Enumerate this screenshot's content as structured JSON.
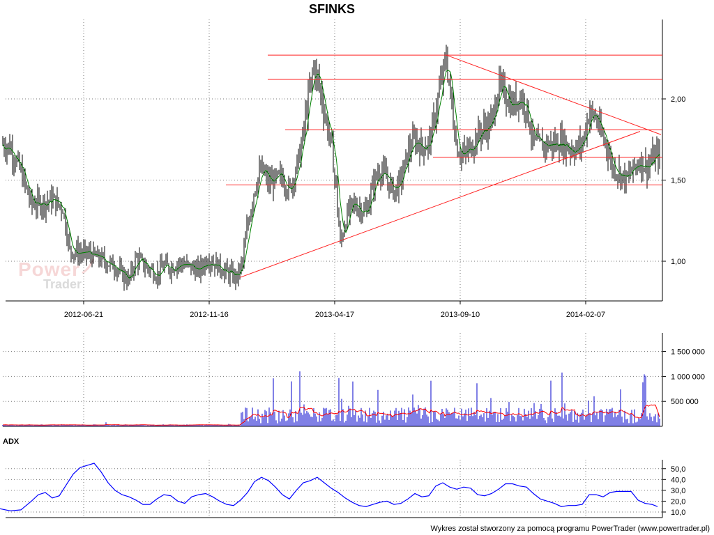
{
  "chart_data": [
    {
      "type": "candlestick",
      "title": "SFINKS",
      "x_tick_labels": [
        "2012-06-21",
        "2012-11-16",
        "2013-04-17",
        "2013-09-10",
        "2014-02-07"
      ],
      "y_tick_labels": [
        "1,00",
        "1,50",
        "2,00"
      ],
      "ylim": [
        0.8,
        2.4
      ],
      "grid": true,
      "price_path": [
        [
          0,
          1.73
        ],
        [
          15,
          1.7
        ],
        [
          30,
          1.55
        ],
        [
          45,
          1.35
        ],
        [
          60,
          1.36
        ],
        [
          75,
          1.38
        ],
        [
          90,
          1.33
        ],
        [
          100,
          1.07
        ],
        [
          115,
          1.05
        ],
        [
          130,
          1.04
        ],
        [
          150,
          1.0
        ],
        [
          165,
          0.97
        ],
        [
          175,
          0.92
        ],
        [
          185,
          0.88
        ],
        [
          195,
          1.02
        ],
        [
          205,
          0.98
        ],
        [
          215,
          0.95
        ],
        [
          225,
          0.92
        ],
        [
          235,
          0.97
        ],
        [
          245,
          0.96
        ],
        [
          255,
          0.99
        ],
        [
          270,
          0.97
        ],
        [
          285,
          0.94
        ],
        [
          298,
          1.02
        ],
        [
          310,
          0.98
        ],
        [
          325,
          0.93
        ],
        [
          340,
          0.9
        ],
        [
          348,
          1.0
        ],
        [
          355,
          1.22
        ],
        [
          365,
          1.45
        ],
        [
          375,
          1.57
        ],
        [
          385,
          1.48
        ],
        [
          395,
          1.5
        ],
        [
          405,
          1.52
        ],
        [
          415,
          1.43
        ],
        [
          425,
          1.58
        ],
        [
          432,
          1.7
        ],
        [
          440,
          1.95
        ],
        [
          450,
          2.2
        ],
        [
          458,
          2.08
        ],
        [
          465,
          1.92
        ],
        [
          475,
          1.72
        ],
        [
          482,
          1.45
        ],
        [
          488,
          1.1
        ],
        [
          495,
          1.25
        ],
        [
          505,
          1.35
        ],
        [
          515,
          1.33
        ],
        [
          525,
          1.3
        ],
        [
          535,
          1.47
        ],
        [
          545,
          1.57
        ],
        [
          555,
          1.5
        ],
        [
          565,
          1.43
        ],
        [
          575,
          1.5
        ],
        [
          585,
          1.67
        ],
        [
          595,
          1.75
        ],
        [
          605,
          1.7
        ],
        [
          615,
          1.73
        ],
        [
          622,
          1.85
        ],
        [
          630,
          2.05
        ],
        [
          640,
          2.25
        ],
        [
          648,
          1.95
        ],
        [
          655,
          1.7
        ],
        [
          665,
          1.65
        ],
        [
          675,
          1.7
        ],
        [
          685,
          1.78
        ],
        [
          695,
          1.82
        ],
        [
          705,
          1.85
        ],
        [
          715,
          2.08
        ],
        [
          725,
          2.03
        ],
        [
          735,
          1.95
        ],
        [
          745,
          2.02
        ],
        [
          755,
          1.95
        ],
        [
          765,
          1.73
        ],
        [
          775,
          1.71
        ],
        [
          785,
          1.72
        ],
        [
          795,
          1.72
        ],
        [
          805,
          1.74
        ],
        [
          815,
          1.7
        ],
        [
          825,
          1.69
        ],
        [
          835,
          1.72
        ],
        [
          845,
          1.92
        ],
        [
          855,
          1.88
        ],
        [
          862,
          1.78
        ],
        [
          870,
          1.72
        ],
        [
          878,
          1.58
        ],
        [
          888,
          1.55
        ],
        [
          898,
          1.5
        ],
        [
          908,
          1.57
        ],
        [
          918,
          1.62
        ],
        [
          928,
          1.58
        ],
        [
          935,
          1.63
        ],
        [
          945,
          1.66
        ]
      ],
      "horizontal_lines": [
        2.27,
        2.12,
        1.81,
        1.64,
        1.47
      ],
      "trendlines": [
        {
          "from": [
            344,
            0.9
          ],
          "to": [
            918,
            1.8
          ]
        },
        {
          "from": [
            640,
            2.27
          ],
          "to": [
            948,
            1.78
          ]
        }
      ]
    },
    {
      "type": "bar",
      "title": "",
      "y_tick_labels": [
        "500 000",
        "1 000 000",
        "1 500 000"
      ],
      "ylim": [
        0,
        1900000
      ],
      "series_colors": {
        "volume": "#0000cc",
        "average": "#ff0000"
      }
    },
    {
      "type": "line",
      "title": "ADX",
      "y_tick_labels": [
        "10,0",
        "20,0",
        "30,0",
        "40,0",
        "50,0"
      ],
      "ylim": [
        5,
        60
      ],
      "series": [
        {
          "values": [
            [
              0,
              13
            ],
            [
              15,
              11
            ],
            [
              30,
              12
            ],
            [
              45,
              20
            ],
            [
              55,
              26
            ],
            [
              65,
              28
            ],
            [
              75,
              23
            ],
            [
              85,
              25
            ],
            [
              95,
              35
            ],
            [
              105,
              45
            ],
            [
              115,
              51
            ],
            [
              125,
              53
            ],
            [
              135,
              55
            ],
            [
              145,
              47
            ],
            [
              155,
              37
            ],
            [
              165,
              30
            ],
            [
              175,
              26
            ],
            [
              185,
              24
            ],
            [
              195,
              21
            ],
            [
              205,
              17
            ],
            [
              215,
              17
            ],
            [
              225,
              22
            ],
            [
              235,
              26
            ],
            [
              245,
              25
            ],
            [
              255,
              20
            ],
            [
              265,
              18
            ],
            [
              275,
              24
            ],
            [
              285,
              26
            ],
            [
              295,
              27
            ],
            [
              305,
              24
            ],
            [
              315,
              20
            ],
            [
              325,
              17
            ],
            [
              335,
              16
            ],
            [
              345,
              21
            ],
            [
              355,
              28
            ],
            [
              365,
              38
            ],
            [
              375,
              42
            ],
            [
              385,
              39
            ],
            [
              395,
              33
            ],
            [
              405,
              26
            ],
            [
              415,
              22
            ],
            [
              425,
              30
            ],
            [
              435,
              37
            ],
            [
              445,
              39
            ],
            [
              455,
              42
            ],
            [
              465,
              37
            ],
            [
              475,
              32
            ],
            [
              485,
              28
            ],
            [
              495,
              23
            ],
            [
              505,
              19
            ],
            [
              515,
              16
            ],
            [
              525,
              15
            ],
            [
              535,
              17
            ],
            [
              545,
              19
            ],
            [
              555,
              20
            ],
            [
              565,
              17
            ],
            [
              575,
              18
            ],
            [
              585,
              22
            ],
            [
              595,
              27
            ],
            [
              605,
              24
            ],
            [
              615,
              25
            ],
            [
              625,
              34
            ],
            [
              635,
              37
            ],
            [
              645,
              33
            ],
            [
              655,
              31
            ],
            [
              665,
              33
            ],
            [
              675,
              32
            ],
            [
              685,
              26
            ],
            [
              695,
              25
            ],
            [
              705,
              27
            ],
            [
              715,
              31
            ],
            [
              725,
              36
            ],
            [
              735,
              36
            ],
            [
              745,
              34
            ],
            [
              755,
              33
            ],
            [
              765,
              27
            ],
            [
              775,
              22
            ],
            [
              785,
              20
            ],
            [
              795,
              18
            ],
            [
              805,
              15
            ],
            [
              815,
              16
            ],
            [
              825,
              16
            ],
            [
              835,
              17
            ],
            [
              845,
              26
            ],
            [
              855,
              26
            ],
            [
              865,
              24
            ],
            [
              875,
              28
            ],
            [
              885,
              29
            ],
            [
              895,
              29
            ],
            [
              905,
              29
            ],
            [
              915,
              21
            ],
            [
              925,
              18
            ],
            [
              935,
              17
            ],
            [
              943,
              15
            ]
          ]
        }
      ],
      "series_colors": {
        "adx": "#0000ff"
      }
    }
  ],
  "watermark": {
    "line1": "Power",
    "line2": "Trader"
  },
  "footer": "Wykres został stworzony za pomocą programu PowerTrader (www.powertrader.pl)"
}
